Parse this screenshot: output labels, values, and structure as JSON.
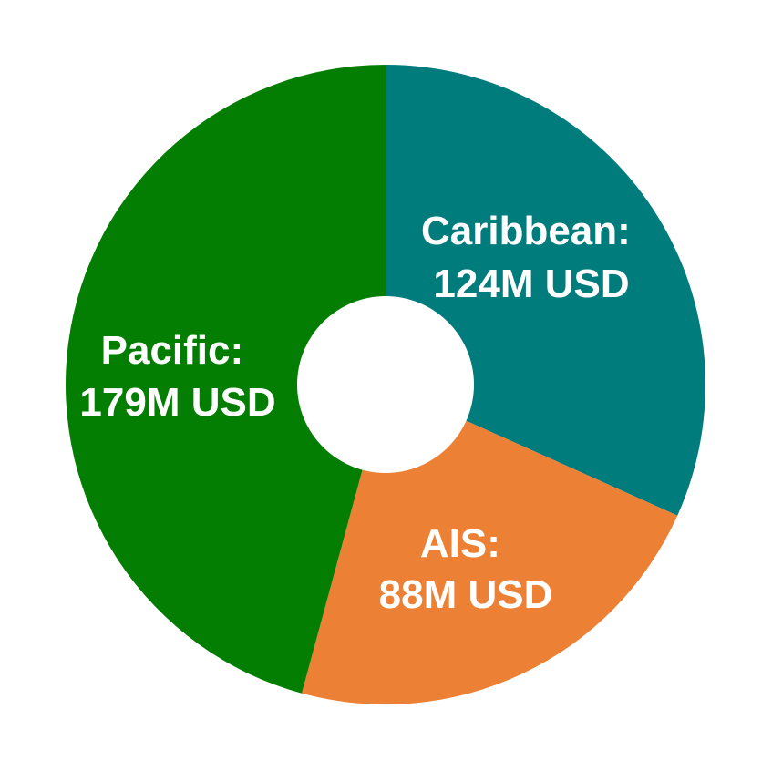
{
  "chart_data": {
    "type": "pie",
    "title": "",
    "donut": true,
    "slices": [
      {
        "label": "Caribbean",
        "value": 124,
        "display_label": "Caribbean:",
        "display_value": "124M USD",
        "color": "#007c7d"
      },
      {
        "label": "AIS",
        "value": 88,
        "display_label": "AIS:",
        "display_value": "88M USD",
        "color": "#ec8034"
      },
      {
        "label": "Pacific",
        "value": 179,
        "display_label": "Pacific:",
        "display_value": "179M USD",
        "color": "#037e03"
      }
    ],
    "units": "M USD",
    "legend": "none"
  }
}
